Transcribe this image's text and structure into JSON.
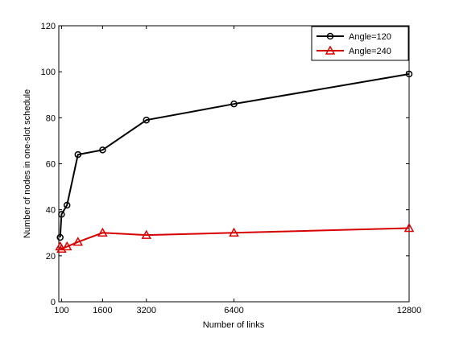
{
  "chart_data": {
    "type": "line",
    "title": "",
    "xlabel": "Number of links",
    "ylabel": "Number of nodes in one-slot schedule",
    "xlim": [
      0,
      12800
    ],
    "ylim": [
      0,
      120
    ],
    "x_ticks": [
      100,
      1600,
      3200,
      6400,
      12800
    ],
    "y_ticks": [
      0,
      20,
      40,
      60,
      80,
      100,
      120
    ],
    "grid": false,
    "legend_position": "top-right",
    "series": [
      {
        "name": "Angle=120",
        "color": "#000000",
        "marker": "circle",
        "x": [
          50,
          100,
          300,
          700,
          1600,
          3200,
          6400,
          12800
        ],
        "y": [
          28,
          38,
          42,
          64,
          66,
          79,
          86,
          99
        ]
      },
      {
        "name": "Angle=240",
        "color": "#d80000",
        "marker": "triangle",
        "x": [
          50,
          100,
          300,
          700,
          1600,
          3200,
          6400,
          12800
        ],
        "y": [
          24,
          23,
          24,
          26,
          30,
          29,
          30,
          32
        ]
      }
    ]
  }
}
